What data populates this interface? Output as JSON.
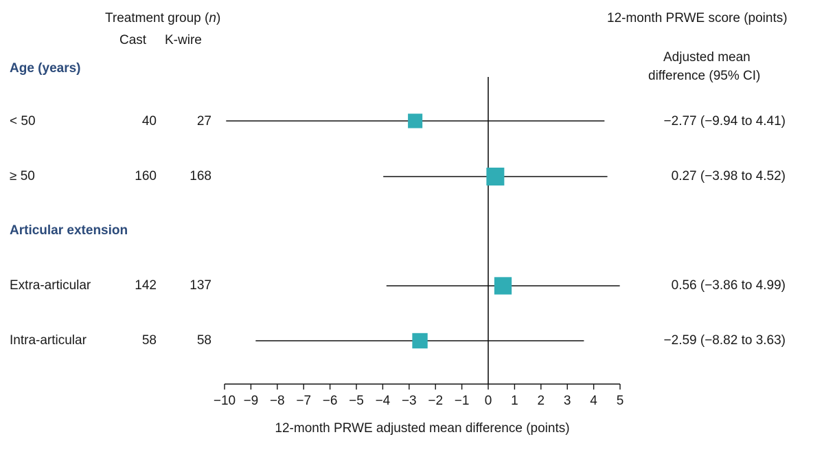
{
  "header": {
    "treatment_group_prefix": "Treatment group (",
    "treatment_group_n": "n",
    "treatment_group_suffix": ")",
    "col_cast": "Cast",
    "col_kwire": "K-wire",
    "score_title": "12-month PRWE score (points)",
    "effect_line1": "Adjusted mean",
    "effect_line2": "difference (95% CI)"
  },
  "sections": [
    {
      "heading": "Age (years)",
      "rows": [
        {
          "label": "< 50",
          "cast": "40",
          "kwire": "27",
          "ci_text": "−2.77 (−9.94 to 4.41)"
        },
        {
          "label": "≥ 50",
          "cast": "160",
          "kwire": "168",
          "ci_text": "0.27 (−3.98 to 4.52)"
        }
      ]
    },
    {
      "heading": "Articular extension",
      "rows": [
        {
          "label": "Extra-articular",
          "cast": "142",
          "kwire": "137",
          "ci_text": "0.56 (−3.86 to 4.99)"
        },
        {
          "label": "Intra-articular",
          "cast": "58",
          "kwire": "58",
          "ci_text": "−2.59 (−8.82 to 3.63)"
        }
      ]
    }
  ],
  "chart_data": {
    "type": "forest",
    "xlabel": "12-month PRWE adjusted mean difference (points)",
    "xlim": [
      -10,
      5
    ],
    "xticks": [
      -10,
      -9,
      -8,
      -7,
      -6,
      -5,
      -4,
      -3,
      -2,
      -1,
      0,
      1,
      2,
      3,
      4,
      5
    ],
    "xtick_labels": [
      "−10",
      "−9",
      "−8",
      "−7",
      "−6",
      "−5",
      "−4",
      "−3",
      "−2",
      "−1",
      "0",
      "1",
      "2",
      "3",
      "4",
      "5"
    ],
    "reference_line": 0,
    "marker_color": "#30adb5",
    "points": [
      {
        "label": "< 50",
        "estimate": -2.77,
        "lower": -9.94,
        "upper": 4.41,
        "total_n": 67
      },
      {
        "label": "≥ 50",
        "estimate": 0.27,
        "lower": -3.98,
        "upper": 4.52,
        "total_n": 328
      },
      {
        "label": "Extra-articular",
        "estimate": 0.56,
        "lower": -3.86,
        "upper": 4.99,
        "total_n": 279
      },
      {
        "label": "Intra-articular",
        "estimate": -2.59,
        "lower": -8.82,
        "upper": 3.63,
        "total_n": 116
      }
    ]
  }
}
